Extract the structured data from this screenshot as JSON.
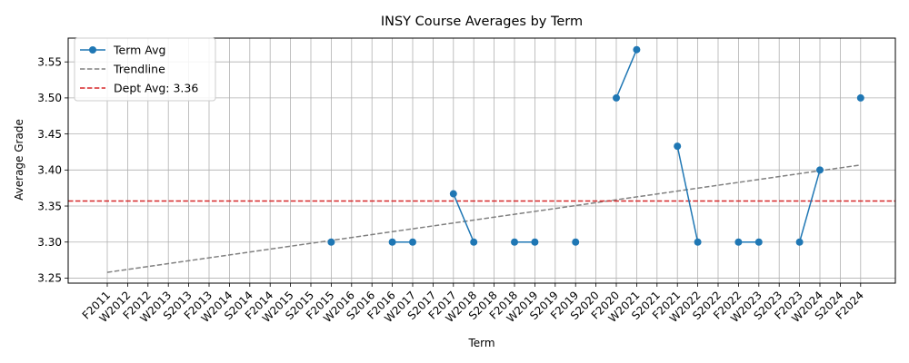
{
  "chart_data": {
    "type": "line",
    "title": "INSY Course Averages by Term",
    "xlabel": "Term",
    "ylabel": "Average Grade",
    "categories": [
      "F2011",
      "W2012",
      "F2012",
      "W2013",
      "S2013",
      "F2013",
      "W2014",
      "S2014",
      "F2014",
      "W2015",
      "S2015",
      "F2015",
      "W2016",
      "S2016",
      "F2016",
      "W2017",
      "S2017",
      "F2017",
      "W2018",
      "S2018",
      "F2018",
      "W2019",
      "S2019",
      "F2019",
      "S2020",
      "F2020",
      "W2021",
      "S2021",
      "F2021",
      "W2022",
      "S2022",
      "F2022",
      "W2023",
      "S2023",
      "F2023",
      "W2024",
      "S2024",
      "F2024"
    ],
    "ylim": [
      3.243,
      3.583
    ],
    "yticks": [
      "3.25",
      "3.30",
      "3.35",
      "3.40",
      "3.45",
      "3.50",
      "3.55"
    ],
    "grid": true,
    "legend_position": "upper-left",
    "series": [
      {
        "name": "Term Avg",
        "color": "#1f77b4",
        "values": [
          null,
          null,
          null,
          null,
          null,
          null,
          null,
          null,
          null,
          null,
          null,
          3.3,
          null,
          null,
          3.3,
          3.3,
          null,
          3.367,
          3.3,
          null,
          3.3,
          3.3,
          null,
          3.3,
          null,
          3.5,
          3.567,
          null,
          3.433,
          3.3,
          null,
          3.3,
          3.3,
          null,
          3.3,
          3.4,
          null,
          3.5
        ]
      }
    ],
    "trendline": {
      "name": "Trendline",
      "color": "#808080",
      "start": 3.258,
      "end": 3.407
    },
    "reference_line": {
      "name": "Dept Avg: 3.36",
      "color": "#d62728",
      "value": 3.357
    }
  }
}
